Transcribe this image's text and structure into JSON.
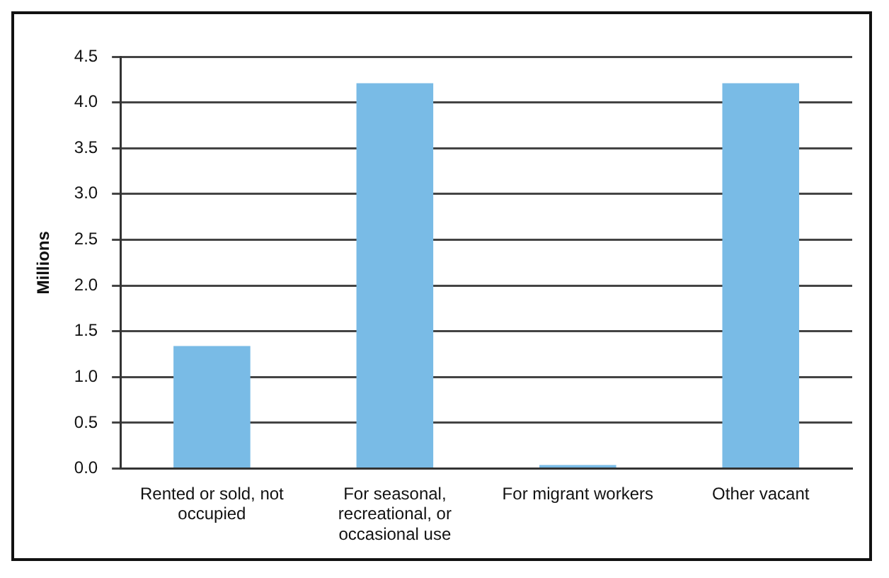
{
  "chart_data": {
    "type": "bar",
    "ylabel": "Millions",
    "categories": [
      "Rented or sold, not occupied",
      "For seasonal, recreational, or occasional use",
      "For migrant workers",
      "Other vacant"
    ],
    "values": [
      1.34,
      4.21,
      0.04,
      4.21
    ],
    "color": "#79bbe6",
    "ylim": [
      0,
      4.5
    ],
    "yticks": [
      {
        "value": 0,
        "label": "0.0"
      },
      {
        "value": 0.5,
        "label": "0.5"
      },
      {
        "value": 1,
        "label": "1.0"
      },
      {
        "value": 1.5,
        "label": "1.5"
      },
      {
        "value": 2,
        "label": "2.0"
      },
      {
        "value": 2.5,
        "label": "2.5"
      },
      {
        "value": 3,
        "label": "3.0"
      },
      {
        "value": 3.5,
        "label": "3.5"
      },
      {
        "value": 4,
        "label": "4.0"
      },
      {
        "value": 4.5,
        "label": "4.5"
      }
    ],
    "grid": "y",
    "legend": false
  }
}
